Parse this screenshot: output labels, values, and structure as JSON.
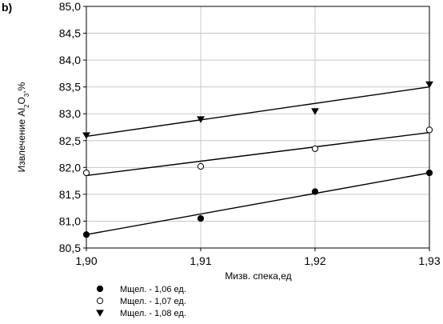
{
  "panel_label": "b)",
  "chart_data": {
    "type": "scatter",
    "xlabel": "Мизв. спека,ед",
    "ylabel_parts": [
      "Извлечение Al",
      "2",
      "O",
      "3",
      ",%"
    ],
    "xlim": [
      1.9,
      1.93
    ],
    "ylim": [
      80.5,
      85.0
    ],
    "x_ticks": [
      1.9,
      1.91,
      1.92,
      1.93
    ],
    "x_tick_labels": [
      "1,90",
      "1,91",
      "1,92",
      "1,93"
    ],
    "y_ticks": [
      80.5,
      81.0,
      81.5,
      82.0,
      82.5,
      83.0,
      83.5,
      84.0,
      84.5,
      85.0
    ],
    "y_tick_labels": [
      "80,5",
      "81,0",
      "81,5",
      "82,0",
      "82,5",
      "83,0",
      "83,5",
      "84,0",
      "84,5",
      "85,0"
    ],
    "grid": true,
    "legend_position": "bottom-left",
    "series": [
      {
        "name": "Мщел. - 1,06 ед.",
        "marker": "filled-circle",
        "x": [
          1.9,
          1.91,
          1.92,
          1.93
        ],
        "y": [
          80.75,
          81.05,
          81.55,
          81.9
        ],
        "fit": [
          [
            1.9,
            80.75
          ],
          [
            1.93,
            81.9
          ]
        ]
      },
      {
        "name": "Мщел. - 1,07 ед.",
        "marker": "open-circle",
        "x": [
          1.9,
          1.91,
          1.92,
          1.93
        ],
        "y": [
          81.9,
          82.02,
          82.35,
          82.7
        ],
        "fit": [
          [
            1.9,
            81.85
          ],
          [
            1.93,
            82.65
          ]
        ]
      },
      {
        "name": "Мщел. - 1,08 ед.",
        "marker": "filled-triangle-down",
        "x": [
          1.9,
          1.91,
          1.92,
          1.93
        ],
        "y": [
          82.6,
          82.9,
          83.05,
          83.55
        ],
        "fit": [
          [
            1.9,
            82.58
          ],
          [
            1.93,
            83.5
          ]
        ]
      }
    ]
  }
}
